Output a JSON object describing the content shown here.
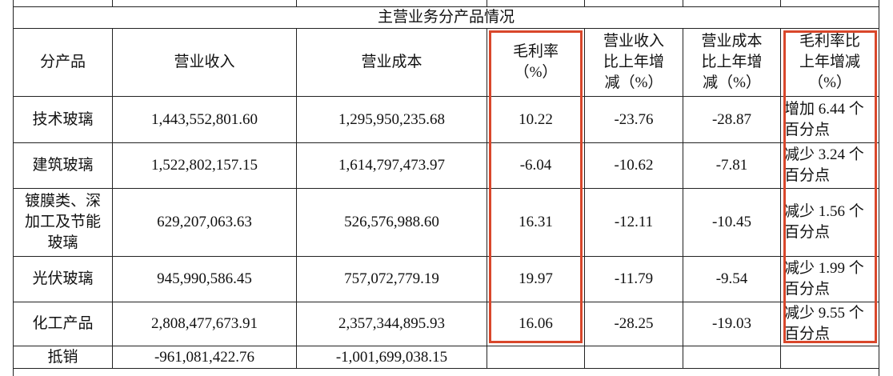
{
  "table": {
    "title": "主营业务分产品情况",
    "header": [
      "分产品",
      "营业收入",
      "营业成本",
      "毛利率（%）",
      "营业收入比上年增减（%）",
      "营业成本比上年增减（%）",
      "毛利率比上年增减（%）"
    ],
    "rows": [
      [
        "技术玻璃",
        "1,443,552,801.60",
        "1,295,950,235.68",
        "10.22",
        "-23.76",
        "-28.87",
        "增加 6.44 个百分点"
      ],
      [
        "建筑玻璃",
        "1,522,802,157.15",
        "1,614,797,473.97",
        "-6.04",
        "-10.62",
        "-7.81",
        "减少 3.24 个百分点"
      ],
      [
        "镀膜类、深加工及节能玻璃",
        "629,207,063.63",
        "526,576,988.60",
        "16.31",
        "-12.11",
        "-10.45",
        "减少 1.56 个百分点"
      ],
      [
        "光伏玻璃",
        "945,990,586.45",
        "757,072,779.19",
        "19.97",
        "-11.79",
        "-9.54",
        "减少 1.99 个百分点"
      ],
      [
        "化工产品",
        "2,808,477,673.91",
        "2,357,344,895.93",
        "16.06",
        "-28.25",
        "-19.03",
        "减少 9.55 个百分点"
      ],
      [
        "抵销",
        "-961,081,422.76",
        "-1,001,699,038.15",
        null,
        null,
        null,
        null
      ]
    ]
  }
}
